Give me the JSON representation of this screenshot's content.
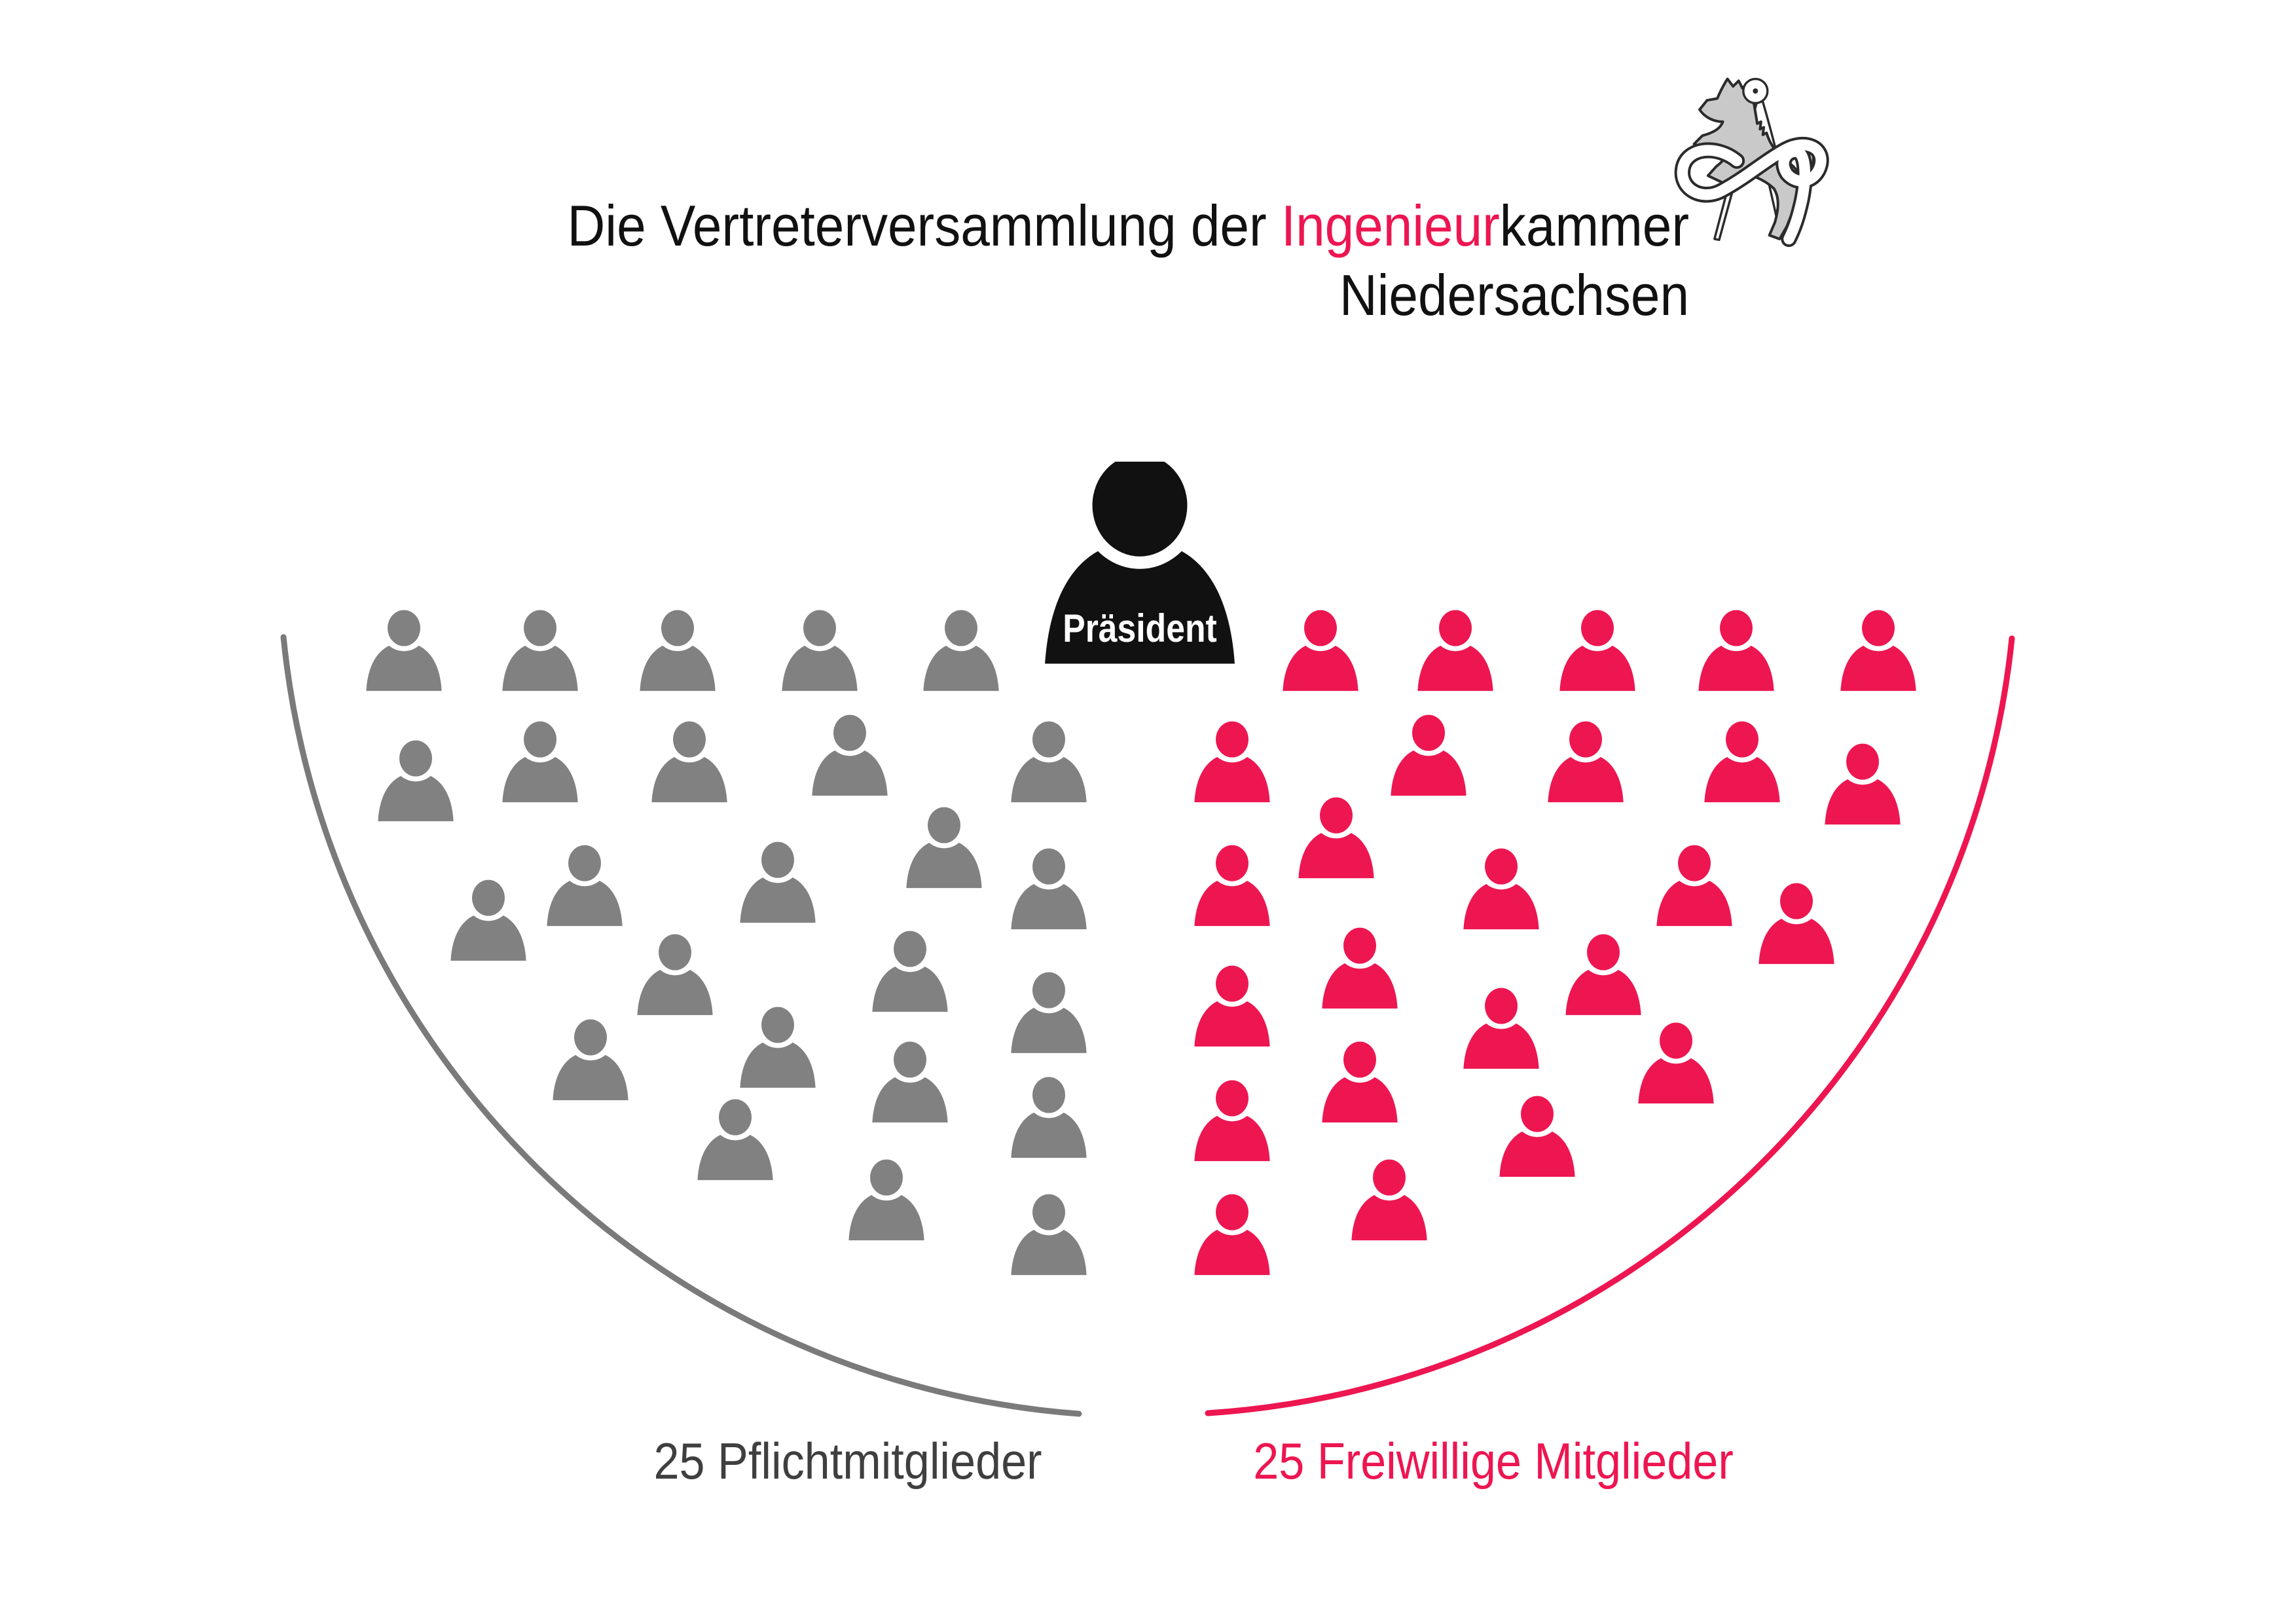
{
  "colors": {
    "pink": "#ED1651",
    "member_gray": "#818181",
    "arc_gray": "#7A7A7A",
    "text_dark": "#3F3F3F",
    "ink": "#111111",
    "logo_fill": "#C9C9C9",
    "logo_outline": "#2B2B2B"
  },
  "title": {
    "prefix": "Die Vertreterversammlung der ",
    "highlight": "Ingenieur",
    "suffix": "kammer",
    "line2": "Niedersachsen"
  },
  "logo": {
    "name": "Ingenieurkammer Niedersachsen emblem",
    "description": "Saxon steed with drafting compass and ribbon"
  },
  "president": {
    "label": "Präsident"
  },
  "groups": {
    "left": {
      "label": "25 Pflichtmitglieder",
      "count": 25
    },
    "right": {
      "label": "25 Freiwillige Mitglieder",
      "count": 25
    }
  },
  "chart_data": {
    "type": "pictogram",
    "subtype": "parliament-seat-diagram",
    "title": "Die Vertreterversammlung der Ingenieurkammer Niedersachsen",
    "total_seats": 51,
    "series": [
      {
        "name": "Präsident",
        "count": 1,
        "color": "#111111"
      },
      {
        "name": "Pflichtmitglieder",
        "count": 25,
        "color": "#818181"
      },
      {
        "name": "Freiwillige Mitglieder",
        "count": 25,
        "color": "#ED1651"
      }
    ],
    "seats": {
      "president": [
        1741,
        772
      ],
      "left": [
        [
          617,
          959
        ],
        [
          825,
          959
        ],
        [
          1035,
          959
        ],
        [
          1252,
          959
        ],
        [
          1468,
          959
        ],
        [
          635,
          1158
        ],
        [
          825,
          1129
        ],
        [
          1053,
          1129
        ],
        [
          1298,
          1119
        ],
        [
          1602,
          1129
        ],
        [
          893,
          1318
        ],
        [
          1188,
          1313
        ],
        [
          1442,
          1260
        ],
        [
          1602,
          1323
        ],
        [
          746,
          1371
        ],
        [
          1031,
          1454
        ],
        [
          1390,
          1449
        ],
        [
          1602,
          1512
        ],
        [
          902,
          1584
        ],
        [
          1188,
          1565
        ],
        [
          1390,
          1618
        ],
        [
          1602,
          1672
        ],
        [
          1123,
          1706
        ],
        [
          1354,
          1798
        ],
        [
          1602,
          1851
        ]
      ],
      "right": [
        [
          2017,
          959
        ],
        [
          2223,
          959
        ],
        [
          2440,
          959
        ],
        [
          2652,
          959
        ],
        [
          2869,
          959
        ],
        [
          1882,
          1129
        ],
        [
          2182,
          1119
        ],
        [
          2422,
          1129
        ],
        [
          2661,
          1129
        ],
        [
          2845,
          1163
        ],
        [
          2041,
          1245
        ],
        [
          1882,
          1318
        ],
        [
          2293,
          1323
        ],
        [
          2588,
          1318
        ],
        [
          2744,
          1376
        ],
        [
          2077,
          1444
        ],
        [
          2449,
          1454
        ],
        [
          1882,
          1502
        ],
        [
          2293,
          1536
        ],
        [
          2560,
          1589
        ],
        [
          2077,
          1618
        ],
        [
          1882,
          1677
        ],
        [
          2348,
          1701
        ],
        [
          2122,
          1798
        ],
        [
          1882,
          1851
        ]
      ]
    }
  }
}
